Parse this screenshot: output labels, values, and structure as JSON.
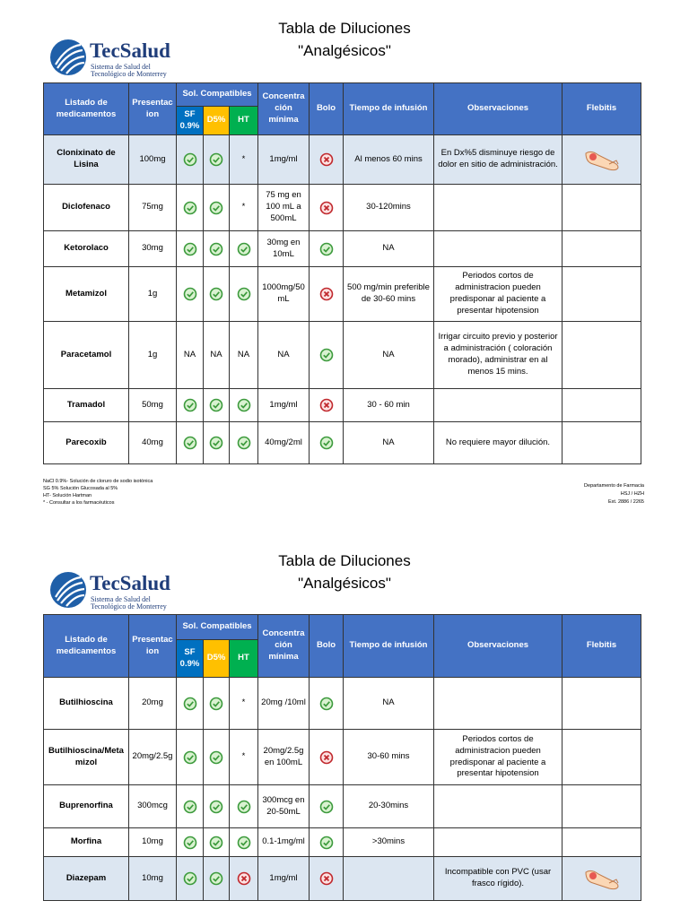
{
  "pages": [
    {
      "title": "Tabla de Diluciones",
      "subtitle": "\"Analgésicos\"",
      "logo": {
        "name": "TecSalud",
        "line1": "Sistema de Salud del",
        "line2": "Tecnológico de Monterrey"
      },
      "table": {
        "columns": [
          "Listado de medicamentos",
          "Presentacion",
          "Sol. Compatibles",
          "SF 0.9%",
          "D5%",
          "HT",
          "Concentración mínima",
          "Bolo",
          "Tiempo de infusión",
          "Observaciones",
          "Flebitis"
        ],
        "rows": [
          [
            "Clonixinato de Lisina",
            "100mg",
            true,
            true,
            "*",
            "1mg/ml",
            false,
            "Al menos 60 mins",
            "En Dx%5 disminuye riesgo de dolor en sitio de administración.",
            true
          ],
          [
            "Diclofenaco",
            "75mg",
            true,
            true,
            "*",
            "75 mg en 100 mL a 500mL",
            false,
            "30-120mins",
            null,
            null
          ],
          [
            "Ketorolaco",
            "30mg",
            true,
            true,
            true,
            "30mg en 10mL",
            true,
            "NA",
            null,
            null
          ],
          [
            "Metamizol",
            "1g",
            true,
            true,
            true,
            "1000mg/50 mL",
            false,
            "500 mg/min preferible de 30-60 mins",
            "Periodos cortos de administracion pueden predisponar al paciente a presentar hipotension",
            null
          ],
          [
            "Paracetamol",
            "1g",
            "NA",
            "NA",
            "NA",
            "NA",
            true,
            "NA",
            "Irrigar circuito previo y posterior a administración ( coloración morado), administrar en al menos 15 mins.",
            null
          ],
          [
            "Tramadol",
            "50mg",
            true,
            true,
            true,
            "1mg/ml",
            false,
            "30 - 60 min",
            null,
            null
          ],
          [
            "Parecoxib",
            "40mg",
            true,
            true,
            true,
            "40mg/2ml",
            true,
            "NA",
            "No requiere mayor dilución.",
            null
          ]
        ]
      }
    },
    {
      "title": "Tabla de Diluciones",
      "subtitle": "\"Analgésicos\"",
      "logo": {
        "name": "TecSalud",
        "line1": "Sistema de Salud del",
        "line2": "Tecnológico de Monterrey"
      },
      "table": {
        "columns": [
          "Listado de medicamentos",
          "Presentacion",
          "Sol. Compatibles",
          "SF 0.9%",
          "D5%",
          "HT",
          "Concentración mínima",
          "Bolo",
          "Tiempo de infusión",
          "Observaciones",
          "Flebitis"
        ],
        "rows": [
          [
            "Butilhioscina",
            "20mg",
            true,
            true,
            "*",
            "20mg /10ml",
            true,
            "NA",
            null,
            null
          ],
          [
            "Butilhioscina/Metamizol",
            "20mg/2.5g",
            true,
            true,
            "*",
            "20mg/2.5g en 100mL",
            false,
            "30-60 mins",
            "Periodos cortos de administracion pueden predisponar al paciente a presentar hipotension",
            null
          ],
          [
            "Buprenorfina",
            "300mcg",
            true,
            true,
            true,
            "300mcg en 20-50mL",
            true,
            "20-30mins",
            null,
            null
          ],
          [
            "Morfina",
            "10mg",
            true,
            true,
            true,
            "0.1-1mg/ml",
            true,
            ">30mins",
            null,
            null
          ],
          [
            "Diazepam",
            "10mg",
            true,
            true,
            false,
            "1mg/ml",
            false,
            null,
            "Incompatible con PVC (usar frasco rígido).",
            true
          ]
        ]
      }
    }
  ],
  "footnotes": [
    "NaCl 0.9%- Solución de cloruro de sodio isotónica",
    "SG 5% Solución Glucosada al 5%",
    "HT- Solución Hartman",
    "* - Consultar a los farmacéuticos"
  ],
  "contact": [
    "Departamento de Farmacia",
    "HSJ / HZH",
    "Ext. 2886 / 2265"
  ]
}
